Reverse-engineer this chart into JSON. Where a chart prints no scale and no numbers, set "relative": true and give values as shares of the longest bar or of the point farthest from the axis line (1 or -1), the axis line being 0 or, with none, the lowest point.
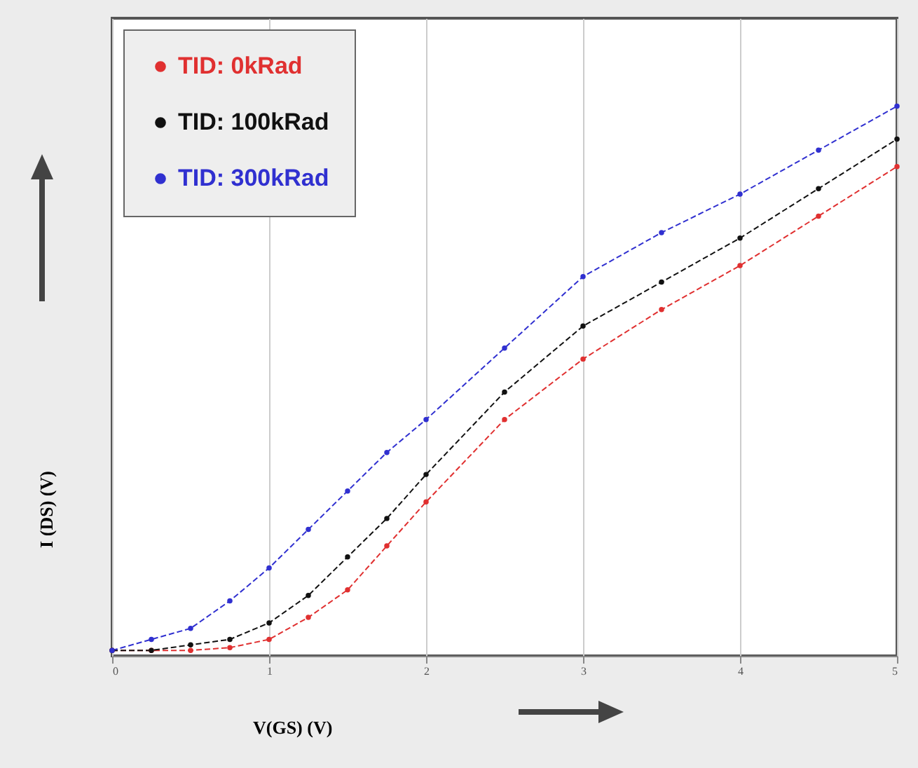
{
  "chart_data": {
    "type": "line",
    "relative": true,
    "xlabel": "V(GS)  (V)",
    "ylabel": "I (DS)  (V)",
    "xlim": [
      0,
      5
    ],
    "xticks": [
      0,
      1,
      2,
      3,
      4,
      5
    ],
    "grid": "x",
    "legend": "top left",
    "marker": "circle",
    "line_style": "dashed",
    "x": [
      0,
      0.25,
      0.5,
      0.75,
      1,
      1.25,
      1.5,
      1.75,
      2,
      2.5,
      3,
      3.5,
      4,
      4.5,
      5
    ],
    "series": [
      {
        "name": "TID: 0kRad",
        "color": "#e03030",
        "values": [
          0.01,
          0.01,
          0.01,
          0.015,
          0.03,
          0.07,
          0.12,
          0.2,
          0.28,
          0.43,
          0.54,
          0.63,
          0.71,
          0.8,
          0.89
        ]
      },
      {
        "name": "TID: 100kRad",
        "color": "#111111",
        "values": [
          0.01,
          0.01,
          0.02,
          0.03,
          0.06,
          0.11,
          0.18,
          0.25,
          0.33,
          0.48,
          0.6,
          0.68,
          0.76,
          0.85,
          0.94
        ]
      },
      {
        "name": "TID: 300kRad",
        "color": "#3030d0",
        "values": [
          0.01,
          0.03,
          0.05,
          0.1,
          0.16,
          0.23,
          0.3,
          0.37,
          0.43,
          0.56,
          0.69,
          0.77,
          0.84,
          0.92,
          1
        ]
      }
    ]
  }
}
